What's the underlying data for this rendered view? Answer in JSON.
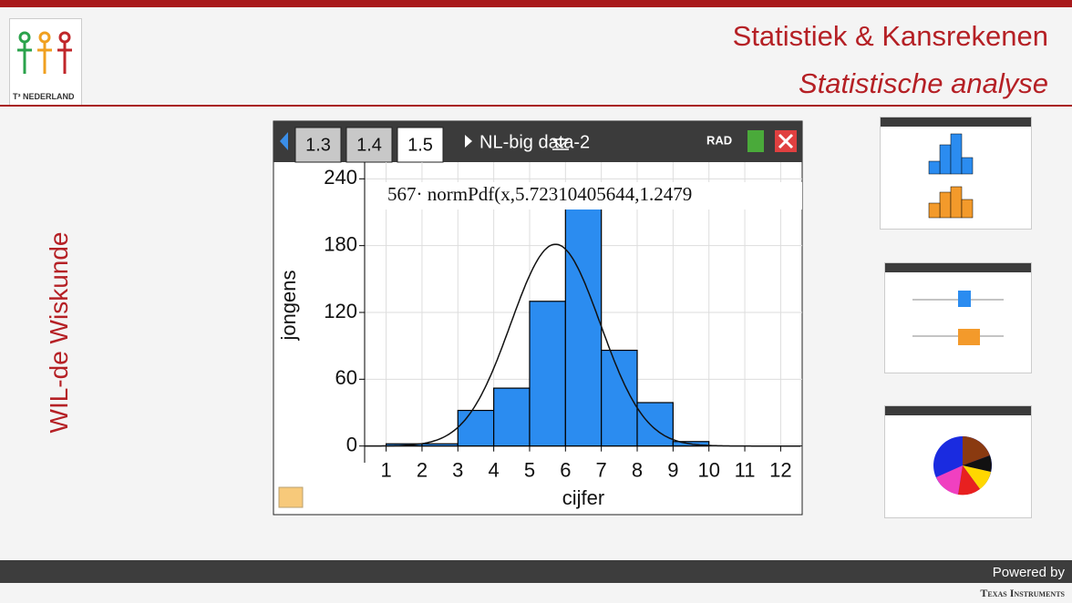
{
  "header": {
    "title": "Statistiek & Kansrekenen",
    "subtitle": "Statistische analyse",
    "logo_text": "T³ NEDERLAND"
  },
  "side_text": "WIL-de Wiskunde",
  "calculator": {
    "tabs": [
      "1.3",
      "1.4",
      "1.5"
    ],
    "document": "NL-big data-2",
    "mode": "RAD"
  },
  "chart_data": {
    "type": "histogram",
    "bins": [
      1,
      2,
      3,
      4,
      5,
      6,
      7,
      8,
      9,
      10
    ],
    "values": [
      2,
      2,
      32,
      52,
      130,
      220,
      86,
      39,
      4
    ],
    "color": "#2b8cf0",
    "xlabel": "cijfer",
    "ylabel": "jongens",
    "xlim": [
      0.4,
      12.6
    ],
    "ylim": [
      -15,
      255
    ],
    "xticks": [
      1,
      2,
      3,
      4,
      5,
      6,
      7,
      8,
      9,
      10,
      11,
      12
    ],
    "yticks": [
      0,
      60,
      120,
      180,
      240
    ],
    "grid": true,
    "curve": {
      "label": "567· normPdf(x,5.72310405644,1.2479",
      "n": 567,
      "mean": 5.72310405644,
      "sd": 1.2479
    }
  },
  "footer": {
    "powered": "Powered by",
    "brand": "Texas Instruments"
  }
}
